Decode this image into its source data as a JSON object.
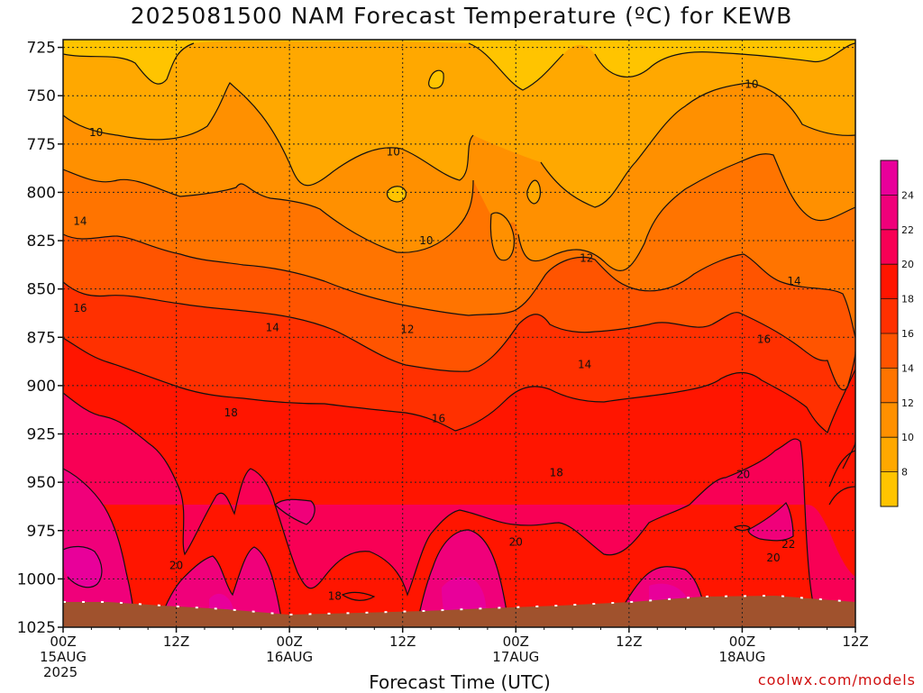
{
  "title": "2025081500 NAM Forecast Temperature (ºC) for KEWB",
  "footer": {
    "credit": "coolwx.com/models"
  },
  "chart_data": {
    "type": "heatmap",
    "title": "2025081500 NAM Forecast Temperature (ºC) for KEWB",
    "xlabel": "Forecast Time (UTC)",
    "ylabel": "",
    "x_ticks": [
      {
        "hour": 0,
        "lines": [
          "00Z",
          "15AUG",
          "2025"
        ]
      },
      {
        "hour": 12,
        "lines": [
          "12Z"
        ]
      },
      {
        "hour": 24,
        "lines": [
          "00Z",
          "16AUG"
        ]
      },
      {
        "hour": 36,
        "lines": [
          "12Z"
        ]
      },
      {
        "hour": 48,
        "lines": [
          "00Z",
          "17AUG"
        ]
      },
      {
        "hour": 60,
        "lines": [
          "12Z"
        ]
      },
      {
        "hour": 72,
        "lines": [
          "00Z",
          "18AUG"
        ]
      },
      {
        "hour": 84,
        "lines": [
          "12Z"
        ]
      }
    ],
    "xlim": [
      0,
      84
    ],
    "y_ticks": [
      725,
      750,
      775,
      800,
      825,
      850,
      875,
      900,
      925,
      950,
      975,
      1000,
      1025
    ],
    "ylim": [
      1025,
      721
    ],
    "grid": true,
    "colorbar": {
      "levels": [
        8,
        10,
        12,
        14,
        16,
        18,
        20,
        22,
        24
      ],
      "colors": [
        "#ffc400",
        "#ffa800",
        "#ff9000",
        "#ff7400",
        "#ff5400",
        "#ff3000",
        "#ff1500",
        "#f80055",
        "#f0007a",
        "#e8009a"
      ]
    },
    "contour_labels": [
      {
        "text": "10",
        "x": 3.5,
        "y": 769
      },
      {
        "text": "10",
        "x": 35,
        "y": 779
      },
      {
        "text": "10",
        "x": 38.5,
        "y": 825
      },
      {
        "text": "10",
        "x": 73,
        "y": 744
      },
      {
        "text": "12",
        "x": 36.5,
        "y": 871
      },
      {
        "text": "12",
        "x": 55.5,
        "y": 834
      },
      {
        "text": "14",
        "x": 1.8,
        "y": 815
      },
      {
        "text": "14",
        "x": 22.2,
        "y": 870
      },
      {
        "text": "14",
        "x": 55.3,
        "y": 889
      },
      {
        "text": "14",
        "x": 77.5,
        "y": 846
      },
      {
        "text": "16",
        "x": 1.8,
        "y": 860
      },
      {
        "text": "16",
        "x": 39.8,
        "y": 917
      },
      {
        "text": "16",
        "x": 74.3,
        "y": 876
      },
      {
        "text": "18",
        "x": 17.8,
        "y": 914
      },
      {
        "text": "18",
        "x": 52.3,
        "y": 945
      },
      {
        "text": "18",
        "x": 28.8,
        "y": 1009
      },
      {
        "text": "20",
        "x": 12.0,
        "y": 993
      },
      {
        "text": "20",
        "x": 48.0,
        "y": 981
      },
      {
        "text": "20",
        "x": 72.1,
        "y": 946
      },
      {
        "text": "20",
        "x": 75.3,
        "y": 989
      },
      {
        "text": "22",
        "x": 76.9,
        "y": 982
      }
    ]
  }
}
